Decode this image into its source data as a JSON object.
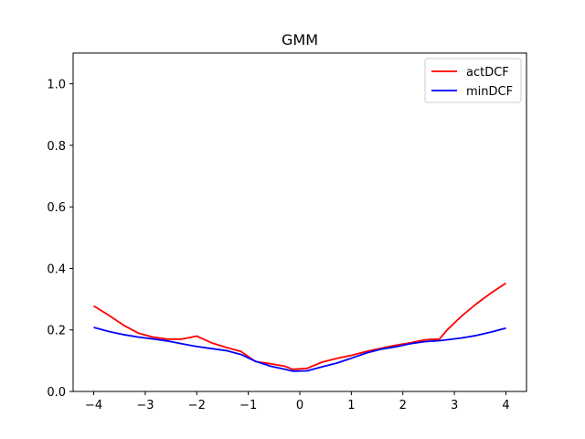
{
  "chart_data": {
    "type": "line",
    "title": "GMM",
    "xlabel": "",
    "ylabel": "",
    "xlim": [
      -4.4,
      4.4
    ],
    "ylim": [
      0.0,
      1.1
    ],
    "xticks": [
      -4,
      -3,
      -2,
      -1,
      0,
      1,
      2,
      3,
      4
    ],
    "xtick_labels": [
      "−4",
      "−3",
      "−2",
      "−1",
      "0",
      "1",
      "2",
      "3",
      "4"
    ],
    "yticks": [
      0.0,
      0.2,
      0.4,
      0.6,
      0.8,
      1.0
    ],
    "ytick_labels": [
      "0.0",
      "0.2",
      "0.4",
      "0.6",
      "0.8",
      "1.0"
    ],
    "grid": false,
    "legend_position": "top-right",
    "x": [
      -4.0,
      -3.71,
      -3.43,
      -3.14,
      -2.86,
      -2.57,
      -2.29,
      -2.0,
      -1.71,
      -1.43,
      -1.14,
      -0.86,
      -0.57,
      -0.29,
      -0.14,
      0.14,
      0.43,
      0.71,
      1.0,
      1.29,
      1.57,
      1.86,
      2.14,
      2.43,
      2.71,
      2.86,
      3.14,
      3.43,
      3.71,
      4.0
    ],
    "series": [
      {
        "name": "actDCF",
        "color": "#ff0000",
        "values": [
          0.278,
          0.248,
          0.216,
          0.19,
          0.177,
          0.17,
          0.17,
          0.18,
          0.158,
          0.143,
          0.13,
          0.097,
          0.09,
          0.082,
          0.072,
          0.075,
          0.095,
          0.107,
          0.117,
          0.13,
          0.14,
          0.15,
          0.158,
          0.168,
          0.17,
          0.2,
          0.245,
          0.285,
          0.32,
          0.352
        ]
      },
      {
        "name": "minDCF",
        "color": "#0000ff",
        "values": [
          0.208,
          0.195,
          0.185,
          0.177,
          0.171,
          0.164,
          0.155,
          0.146,
          0.139,
          0.133,
          0.12,
          0.098,
          0.082,
          0.072,
          0.066,
          0.067,
          0.08,
          0.092,
          0.108,
          0.125,
          0.137,
          0.145,
          0.155,
          0.162,
          0.165,
          0.168,
          0.174,
          0.182,
          0.193,
          0.206
        ]
      }
    ]
  }
}
